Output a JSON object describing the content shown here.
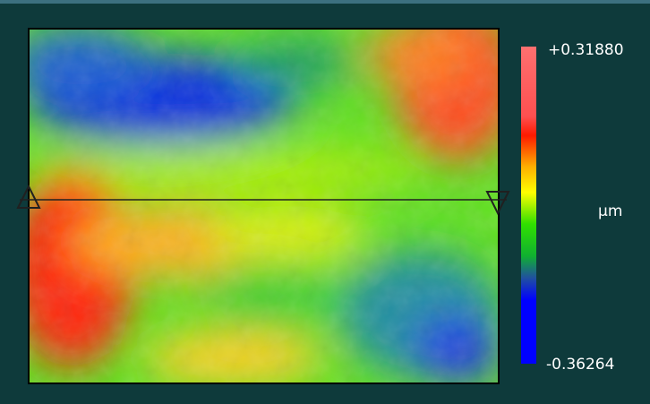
{
  "colorbar": {
    "max_label": "+0.31880",
    "unit": "µm",
    "min_label": "-0.36264"
  }
}
